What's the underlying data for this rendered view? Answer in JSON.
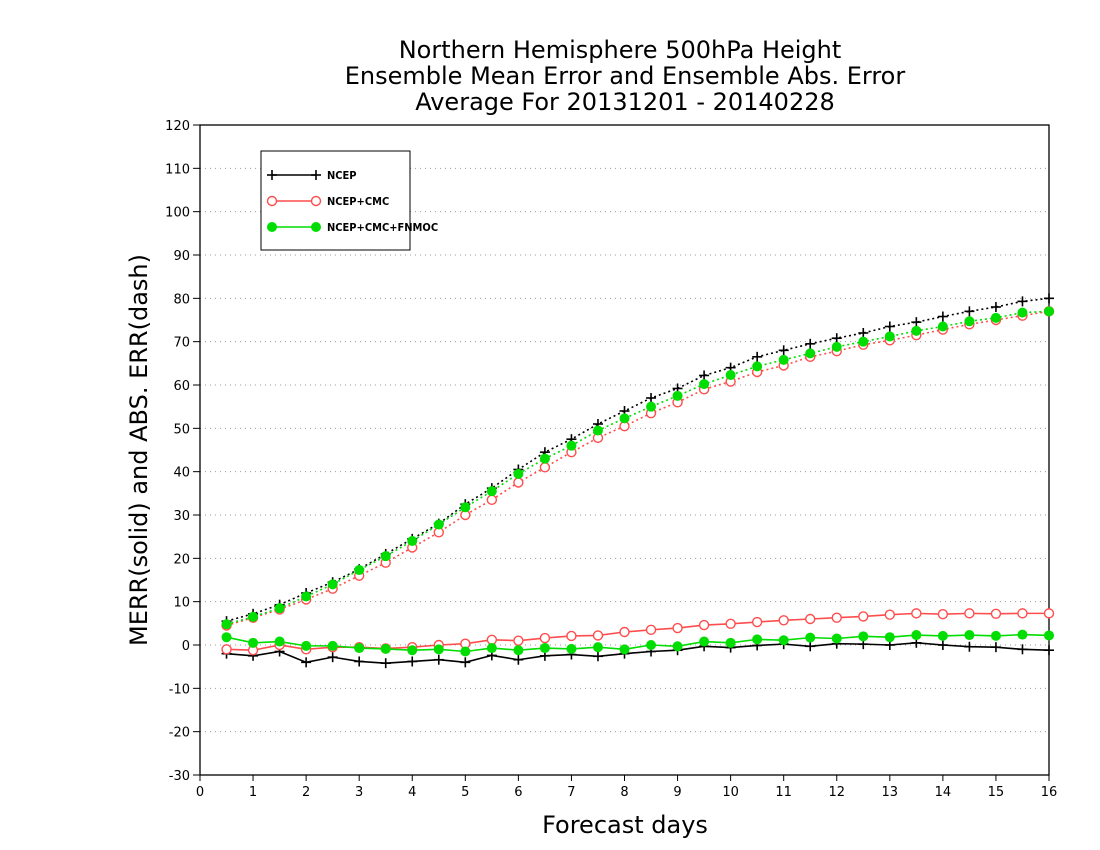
{
  "chart_data": {
    "type": "line",
    "title_lines": [
      "Northern Hemisphere 500hPa Height",
      "Ensemble Mean Error and Ensemble Abs. Error",
      "Average For 20131201 - 20140228"
    ],
    "xlabel": "Forecast days",
    "ylabel": "MERR(solid) and ABS. ERR(dash)",
    "xlim": [
      0,
      16
    ],
    "ylim": [
      -30,
      120
    ],
    "xticks": [
      0,
      1,
      2,
      3,
      4,
      5,
      6,
      7,
      8,
      9,
      10,
      11,
      12,
      13,
      14,
      15,
      16
    ],
    "yticks": [
      -30,
      -20,
      -10,
      0,
      10,
      20,
      30,
      40,
      50,
      60,
      70,
      80,
      90,
      100,
      110,
      120
    ],
    "grid": "horizontal dotted",
    "legend_position": "top-left",
    "x": [
      0.5,
      1,
      1.5,
      2,
      2.5,
      3,
      3.5,
      4,
      4.5,
      5,
      5.5,
      6,
      6.5,
      7,
      7.5,
      8,
      8.5,
      9,
      9.5,
      10,
      10.5,
      11,
      11.5,
      12,
      12.5,
      13,
      13.5,
      14,
      14.5,
      15,
      15.5,
      16
    ],
    "series": [
      {
        "name": "NCEP",
        "color": "#000000",
        "marker": "plus",
        "merr": [
          -2,
          -2.5,
          -1.5,
          -4,
          -2.8,
          -3.8,
          -4.2,
          -3.8,
          -3.4,
          -4,
          -2.4,
          -3.4,
          -2.5,
          -2.2,
          -2.6,
          -2,
          -1.5,
          -1.2,
          -0.3,
          -0.6,
          -0.1,
          0.2,
          -0.3,
          0.3,
          0.2,
          0,
          0.5,
          0,
          -0.4,
          -0.5,
          -1,
          -1.2
        ],
        "abs_err": [
          5.5,
          7.2,
          9.3,
          12,
          14.5,
          17.5,
          21,
          24.5,
          28,
          32.5,
          36.2,
          40.5,
          44.5,
          47.5,
          51,
          54,
          57,
          59.2,
          62.2,
          64,
          66.5,
          68,
          69.5,
          70.8,
          72,
          73.5,
          74.5,
          75.8,
          77,
          78,
          79.3,
          80
        ]
      },
      {
        "name": "NCEP+CMC",
        "color": "#ff4d4d",
        "marker": "open-circle",
        "merr": [
          -1,
          -1.2,
          0,
          -1,
          -0.5,
          -0.5,
          -0.8,
          -0.5,
          0,
          0.3,
          1.2,
          1,
          1.6,
          2.1,
          2.2,
          3,
          3.5,
          3.9,
          4.6,
          4.9,
          5.3,
          5.7,
          6,
          6.3,
          6.6,
          7,
          7.3,
          7.1,
          7.3,
          7.2,
          7.3,
          7.3
        ],
        "abs_err": [
          4.5,
          6.3,
          8.2,
          10.5,
          13,
          16,
          19,
          22.5,
          26,
          30,
          33.5,
          37.5,
          41,
          44.5,
          47.8,
          50.5,
          53.5,
          56,
          59,
          60.8,
          63,
          64.5,
          66.5,
          67.8,
          69.3,
          70.3,
          71.5,
          72.8,
          74,
          75,
          76,
          77
        ]
      },
      {
        "name": "NCEP+CMC+FNMOC",
        "color": "#00dd00",
        "marker": "filled-circle",
        "merr": [
          1.8,
          0.5,
          0.8,
          -0.2,
          -0.2,
          -0.7,
          -0.9,
          -1.2,
          -1,
          -1.5,
          -0.7,
          -1.2,
          -0.7,
          -0.9,
          -0.5,
          -1,
          0,
          -0.3,
          0.8,
          0.5,
          1.3,
          1.1,
          1.7,
          1.5,
          2,
          1.8,
          2.3,
          2.1,
          2.3,
          2.1,
          2.4,
          2.2
        ],
        "abs_err": [
          4.8,
          6.5,
          8.5,
          11.2,
          14,
          17.3,
          20.5,
          24,
          27.8,
          31.8,
          35.5,
          39.5,
          43,
          46,
          49.5,
          52.3,
          55,
          57.5,
          60.2,
          62.3,
          64.3,
          65.8,
          67.3,
          68.8,
          70,
          71.2,
          72.5,
          73.5,
          74.7,
          75.5,
          76.7,
          77
        ]
      }
    ]
  }
}
